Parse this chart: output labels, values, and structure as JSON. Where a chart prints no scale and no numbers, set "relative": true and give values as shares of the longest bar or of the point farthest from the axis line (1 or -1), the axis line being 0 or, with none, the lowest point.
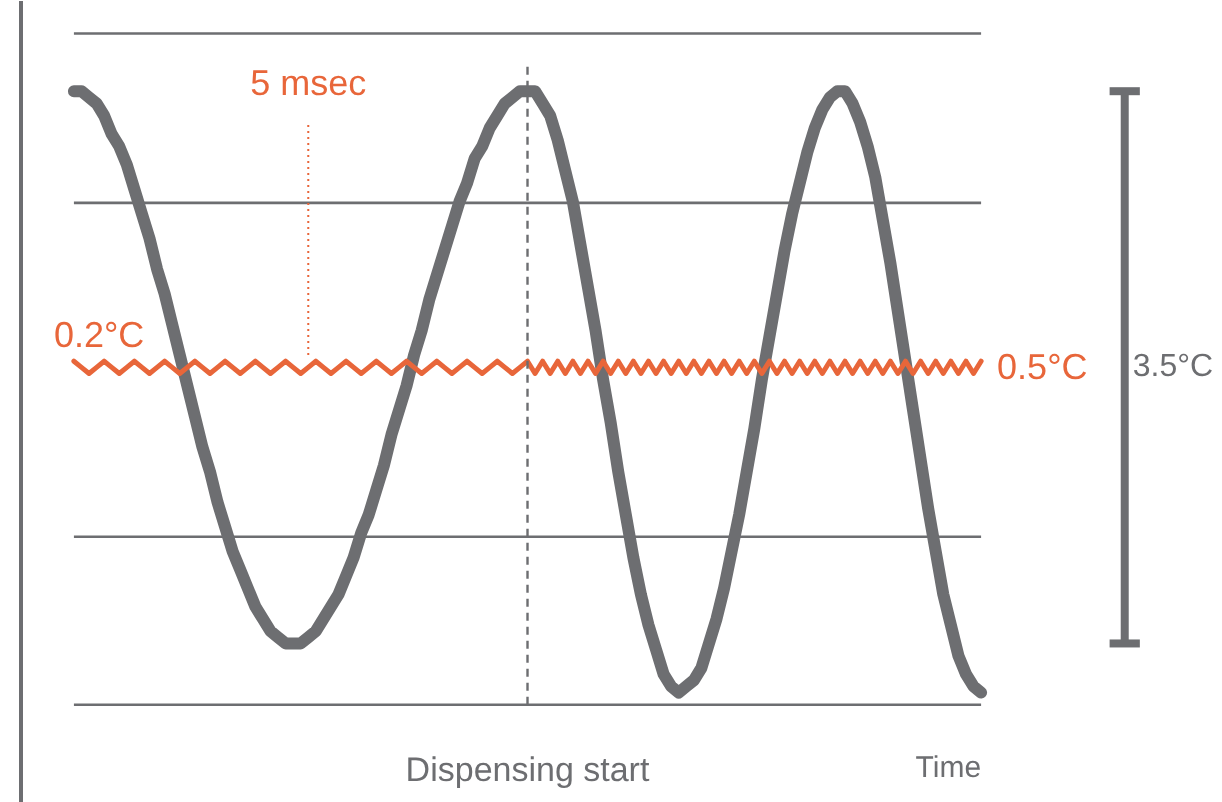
{
  "chart_data": {
    "type": "line",
    "relative": true,
    "xlabel": "Time",
    "line_style": "solid",
    "categories": [
      null,
      null,
      null,
      null,
      null,
      null,
      null,
      null,
      null,
      null,
      null,
      null,
      null,
      null,
      null,
      null,
      null,
      null,
      null,
      null,
      null,
      null,
      null,
      null,
      null,
      null,
      null,
      null,
      null,
      null,
      null,
      null,
      null,
      null,
      null,
      null,
      null,
      null,
      null,
      null,
      null,
      null,
      null,
      null,
      null,
      null,
      null,
      null,
      null,
      null,
      null,
      null,
      null,
      null,
      null,
      null,
      null,
      null,
      null,
      null,
      null,
      null,
      null,
      null,
      null,
      null,
      null,
      null,
      null,
      null,
      null,
      null,
      null,
      null,
      null,
      null,
      null,
      null,
      null,
      null,
      null,
      null,
      null,
      null,
      null,
      null,
      null,
      null,
      null,
      null,
      null,
      null,
      null,
      null,
      null,
      null,
      null,
      null,
      null,
      null,
      null,
      null,
      null,
      null,
      null,
      null,
      null,
      null,
      null,
      null,
      null,
      null,
      null,
      null,
      null,
      null,
      null,
      null,
      null,
      null,
      null
    ],
    "series": [
      {
        "color": "#6d6e71",
        "values": [
          1.0,
          1.0,
          0.99,
          0.98,
          0.96,
          0.93,
          0.91,
          0.88,
          0.84,
          0.8,
          0.76,
          0.71,
          0.67,
          0.62,
          0.57,
          0.52,
          0.47,
          0.42,
          0.38,
          0.33,
          0.29,
          0.25,
          0.22,
          0.19,
          0.16,
          0.14,
          0.12,
          0.11,
          0.1,
          0.1,
          0.1,
          0.11,
          0.12,
          0.14,
          0.16,
          0.18,
          0.21,
          0.24,
          0.28,
          0.31,
          0.35,
          0.39,
          0.44,
          0.48,
          0.52,
          0.57,
          0.61,
          0.66,
          0.7,
          0.74,
          0.78,
          0.82,
          0.85,
          0.89,
          0.91,
          0.94,
          0.96,
          0.98,
          0.99,
          1.0,
          1.0,
          1.0,
          0.98,
          0.96,
          0.92,
          0.87,
          0.82,
          0.75,
          0.68,
          0.61,
          0.53,
          0.46,
          0.38,
          0.31,
          0.24,
          0.18,
          0.13,
          0.09,
          0.05,
          0.03,
          0.02,
          0.03,
          0.04,
          0.06,
          0.1,
          0.14,
          0.19,
          0.25,
          0.31,
          0.38,
          0.45,
          0.53,
          0.6,
          0.67,
          0.74,
          0.8,
          0.85,
          0.9,
          0.94,
          0.97,
          0.99,
          1.0,
          1.0,
          0.98,
          0.95,
          0.91,
          0.86,
          0.79,
          0.72,
          0.64,
          0.56,
          0.48,
          0.4,
          0.32,
          0.25,
          0.18,
          0.13,
          0.08,
          0.05,
          0.03,
          0.02
        ]
      },
      {
        "color": "#e8663a",
        "values": [
          0.56,
          0.55,
          0.54,
          0.55,
          0.56,
          0.55,
          0.54,
          0.55,
          0.56,
          0.55,
          0.54,
          0.55,
          0.56,
          0.55,
          0.54,
          0.55,
          0.56,
          0.55,
          0.54,
          0.55,
          0.56,
          0.55,
          0.54,
          0.55,
          0.56,
          0.55,
          0.54,
          0.55,
          0.56,
          0.55,
          0.54,
          0.55,
          0.56,
          0.55,
          0.54,
          0.55,
          0.56,
          0.55,
          0.54,
          0.55,
          0.56,
          0.55,
          0.54,
          0.55,
          0.56,
          0.55,
          0.54,
          0.55,
          0.56,
          0.55,
          0.54,
          0.55,
          0.56,
          0.55,
          0.54,
          0.55,
          0.56,
          0.55,
          0.54,
          0.55,
          0.56,
          0.54,
          0.56,
          0.54,
          0.56,
          0.54,
          0.56,
          0.54,
          0.56,
          0.54,
          0.56,
          0.54,
          0.56,
          0.54,
          0.56,
          0.54,
          0.56,
          0.54,
          0.56,
          0.54,
          0.56,
          0.54,
          0.56,
          0.54,
          0.56,
          0.54,
          0.56,
          0.54,
          0.56,
          0.54,
          0.56,
          0.54,
          0.56,
          0.54,
          0.56,
          0.54,
          0.56,
          0.54,
          0.56,
          0.54,
          0.56,
          0.54,
          0.56,
          0.54,
          0.56,
          0.54,
          0.56,
          0.54,
          0.56,
          0.54,
          0.56,
          0.54,
          0.56,
          0.54,
          0.56,
          0.54,
          0.56,
          0.54,
          0.56,
          0.54,
          0.56
        ]
      }
    ],
    "ref_lines": [
      {
        "axis": "y",
        "value": 1.094,
        "color": "#6d6e71",
        "line_style": "solid"
      },
      {
        "axis": "y",
        "value": 0.818,
        "color": "#6d6e71",
        "line_style": "solid"
      },
      {
        "axis": "y",
        "value": 0.274,
        "color": "#6d6e71",
        "line_style": "solid"
      },
      {
        "axis": "y",
        "value": 0.0,
        "color": "#6d6e71",
        "line_style": "solid"
      }
    ],
    "annotations": [
      "5 msec",
      "0.2°C",
      "0.5°C",
      "3.5°C",
      "Dispensing start"
    ]
  }
}
